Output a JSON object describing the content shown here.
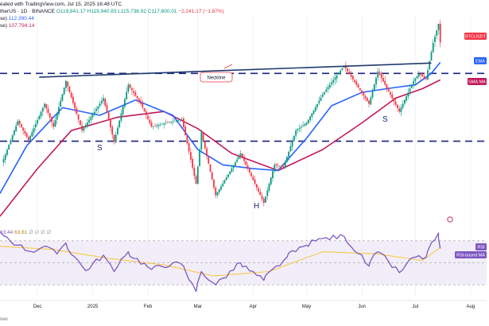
{
  "header": {
    "line1": "eated with TradingView.com, Jul 15, 2025 16:48 UTC",
    "line2_pair": "therUS · 1D · BINANCE",
    "ohlc": {
      "o": "O119,841.17",
      "h": "H119,940.83",
      "l": "L115,736.92",
      "c": "C117,600.01",
      "chg": "−2,241.17 (−1.87%)"
    },
    "ema_row": {
      "label": "se)",
      "value": "112,390.44"
    },
    "sma_row": {
      "label": "se)",
      "value": "107,794.14"
    },
    "rsi_row": {
      "label": "",
      "v1": "63.44",
      "v2": "63.81",
      "dots": "∅ ∅ ∅ ∅"
    },
    "footer": "iew"
  },
  "colors": {
    "up": "#089981",
    "down": "#f23645",
    "ema": "#2962ff",
    "sma": "#c2185b",
    "neckline": "#1e3a6e",
    "level": "#1a237e",
    "rsi": "#7e57c2",
    "rsi_ma": "#f7c948",
    "tag_btc": "#f23645",
    "tag_ema": "#2962ff",
    "tag_sma": "#c2185b",
    "tag_rsi": "#7e57c2"
  },
  "annotations": {
    "neckline": "Neckline",
    "left_shoulder": "S",
    "head": "H",
    "right_shoulder": "S"
  },
  "price_tags": {
    "btc": "BTCUSDT",
    "ema": "EMA",
    "sma": "SMA:MA",
    "rsi": "RSI",
    "rsi_ma": "RSI-based MA"
  },
  "chart_data": {
    "type": "candlestick",
    "x_ticks": [
      "Dec",
      "2025",
      "Feb",
      "Mar",
      "Apr",
      "May",
      "Jun",
      "Jul",
      "Aug"
    ],
    "x_tick_dates": [
      "2024-12-01",
      "2025-01-01",
      "2025-02-01",
      "2025-03-01",
      "2025-04-01",
      "2025-05-01",
      "2025-06-01",
      "2025-07-01",
      "2025-08-01"
    ],
    "x_range": [
      "2024-11-10",
      "2025-08-10"
    ],
    "y_range": [
      72000,
      125000
    ],
    "horizontal_levels": [
      109500,
      91700
    ],
    "neckline": [
      {
        "x": "2024-12-02",
        "y": 108500
      },
      {
        "x": "2025-07-10",
        "y": 112200
      }
    ],
    "pivots": [
      {
        "x": "2024-11-12",
        "y": 87000
      },
      {
        "x": "2024-11-20",
        "y": 97000
      },
      {
        "x": "2024-11-26",
        "y": 92000
      },
      {
        "x": "2024-12-05",
        "y": 101500
      },
      {
        "x": "2024-12-10",
        "y": 95500
      },
      {
        "x": "2024-12-17",
        "y": 107500
      },
      {
        "x": "2024-12-26",
        "y": 94500
      },
      {
        "x": "2025-01-07",
        "y": 103000
      },
      {
        "x": "2025-01-13",
        "y": 91500
      },
      {
        "x": "2025-01-21",
        "y": 106500
      },
      {
        "x": "2025-01-28",
        "y": 101500
      },
      {
        "x": "2025-02-03",
        "y": 95500
      },
      {
        "x": "2025-02-20",
        "y": 97500
      },
      {
        "x": "2025-02-28",
        "y": 80500
      },
      {
        "x": "2025-03-03",
        "y": 94000
      },
      {
        "x": "2025-03-11",
        "y": 77500
      },
      {
        "x": "2025-03-25",
        "y": 88500
      },
      {
        "x": "2025-04-07",
        "y": 75500
      },
      {
        "x": "2025-04-13",
        "y": 85500
      },
      {
        "x": "2025-04-18",
        "y": 84800
      },
      {
        "x": "2025-04-25",
        "y": 94500
      },
      {
        "x": "2025-05-01",
        "y": 96500
      },
      {
        "x": "2025-05-10",
        "y": 104000
      },
      {
        "x": "2025-05-22",
        "y": 111500
      },
      {
        "x": "2025-06-05",
        "y": 101500
      },
      {
        "x": "2025-06-10",
        "y": 110000
      },
      {
        "x": "2025-06-22",
        "y": 99500
      },
      {
        "x": "2025-06-30",
        "y": 107500
      },
      {
        "x": "2025-07-03",
        "y": 109500
      },
      {
        "x": "2025-07-07",
        "y": 108000
      },
      {
        "x": "2025-07-11",
        "y": 117500
      },
      {
        "x": "2025-07-14",
        "y": 122500
      },
      {
        "x": "2025-07-15",
        "y": 117600
      }
    ],
    "ema": [
      {
        "x": "2024-11-10",
        "y": 78000
      },
      {
        "x": "2024-11-25",
        "y": 90500
      },
      {
        "x": "2024-12-15",
        "y": 100500
      },
      {
        "x": "2025-01-05",
        "y": 98500
      },
      {
        "x": "2025-01-25",
        "y": 102500
      },
      {
        "x": "2025-02-15",
        "y": 98500
      },
      {
        "x": "2025-03-01",
        "y": 89500
      },
      {
        "x": "2025-03-15",
        "y": 85500
      },
      {
        "x": "2025-04-01",
        "y": 84500
      },
      {
        "x": "2025-04-15",
        "y": 84000
      },
      {
        "x": "2025-05-01",
        "y": 92500
      },
      {
        "x": "2025-05-15",
        "y": 101000
      },
      {
        "x": "2025-06-01",
        "y": 104500
      },
      {
        "x": "2025-06-15",
        "y": 105500
      },
      {
        "x": "2025-07-01",
        "y": 106500
      },
      {
        "x": "2025-07-10",
        "y": 109500
      },
      {
        "x": "2025-07-15",
        "y": 112390
      }
    ],
    "sma": [
      {
        "x": "2024-11-10",
        "y": 72000
      },
      {
        "x": "2024-12-01",
        "y": 84500
      },
      {
        "x": "2024-12-20",
        "y": 94500
      },
      {
        "x": "2025-01-15",
        "y": 98000
      },
      {
        "x": "2025-02-10",
        "y": 99500
      },
      {
        "x": "2025-03-01",
        "y": 95000
      },
      {
        "x": "2025-03-20",
        "y": 88500
      },
      {
        "x": "2025-04-15",
        "y": 84000
      },
      {
        "x": "2025-05-10",
        "y": 89500
      },
      {
        "x": "2025-06-01",
        "y": 96500
      },
      {
        "x": "2025-06-20",
        "y": 103000
      },
      {
        "x": "2025-07-05",
        "y": 105500
      },
      {
        "x": "2025-07-15",
        "y": 107794
      }
    ],
    "rsi": {
      "y_range": [
        20,
        85
      ],
      "band": [
        30,
        70
      ],
      "points": [
        {
          "x": "2024-11-10",
          "y": 78
        },
        {
          "x": "2024-11-20",
          "y": 66
        },
        {
          "x": "2024-11-28",
          "y": 60
        },
        {
          "x": "2024-12-05",
          "y": 65
        },
        {
          "x": "2024-12-12",
          "y": 58
        },
        {
          "x": "2024-12-17",
          "y": 68
        },
        {
          "x": "2024-12-28",
          "y": 43
        },
        {
          "x": "2025-01-07",
          "y": 57
        },
        {
          "x": "2025-01-13",
          "y": 42
        },
        {
          "x": "2025-01-21",
          "y": 60
        },
        {
          "x": "2025-02-03",
          "y": 44
        },
        {
          "x": "2025-02-15",
          "y": 50
        },
        {
          "x": "2025-02-21",
          "y": 47
        },
        {
          "x": "2025-02-28",
          "y": 24
        },
        {
          "x": "2025-03-03",
          "y": 42
        },
        {
          "x": "2025-03-11",
          "y": 30
        },
        {
          "x": "2025-03-25",
          "y": 50
        },
        {
          "x": "2025-04-07",
          "y": 34
        },
        {
          "x": "2025-04-20",
          "y": 55
        },
        {
          "x": "2025-05-01",
          "y": 66
        },
        {
          "x": "2025-05-10",
          "y": 72
        },
        {
          "x": "2025-05-22",
          "y": 74
        },
        {
          "x": "2025-06-05",
          "y": 47
        },
        {
          "x": "2025-06-10",
          "y": 60
        },
        {
          "x": "2025-06-22",
          "y": 41
        },
        {
          "x": "2025-06-30",
          "y": 55
        },
        {
          "x": "2025-07-07",
          "y": 55
        },
        {
          "x": "2025-07-14",
          "y": 77
        },
        {
          "x": "2025-07-15",
          "y": 63
        }
      ],
      "ma_points": [
        {
          "x": "2024-11-10",
          "y": 65
        },
        {
          "x": "2024-12-10",
          "y": 62
        },
        {
          "x": "2025-01-10",
          "y": 54
        },
        {
          "x": "2025-02-10",
          "y": 48
        },
        {
          "x": "2025-03-10",
          "y": 38
        },
        {
          "x": "2025-04-10",
          "y": 42
        },
        {
          "x": "2025-05-10",
          "y": 60
        },
        {
          "x": "2025-06-10",
          "y": 58
        },
        {
          "x": "2025-07-05",
          "y": 52
        },
        {
          "x": "2025-07-15",
          "y": 64
        }
      ]
    }
  }
}
